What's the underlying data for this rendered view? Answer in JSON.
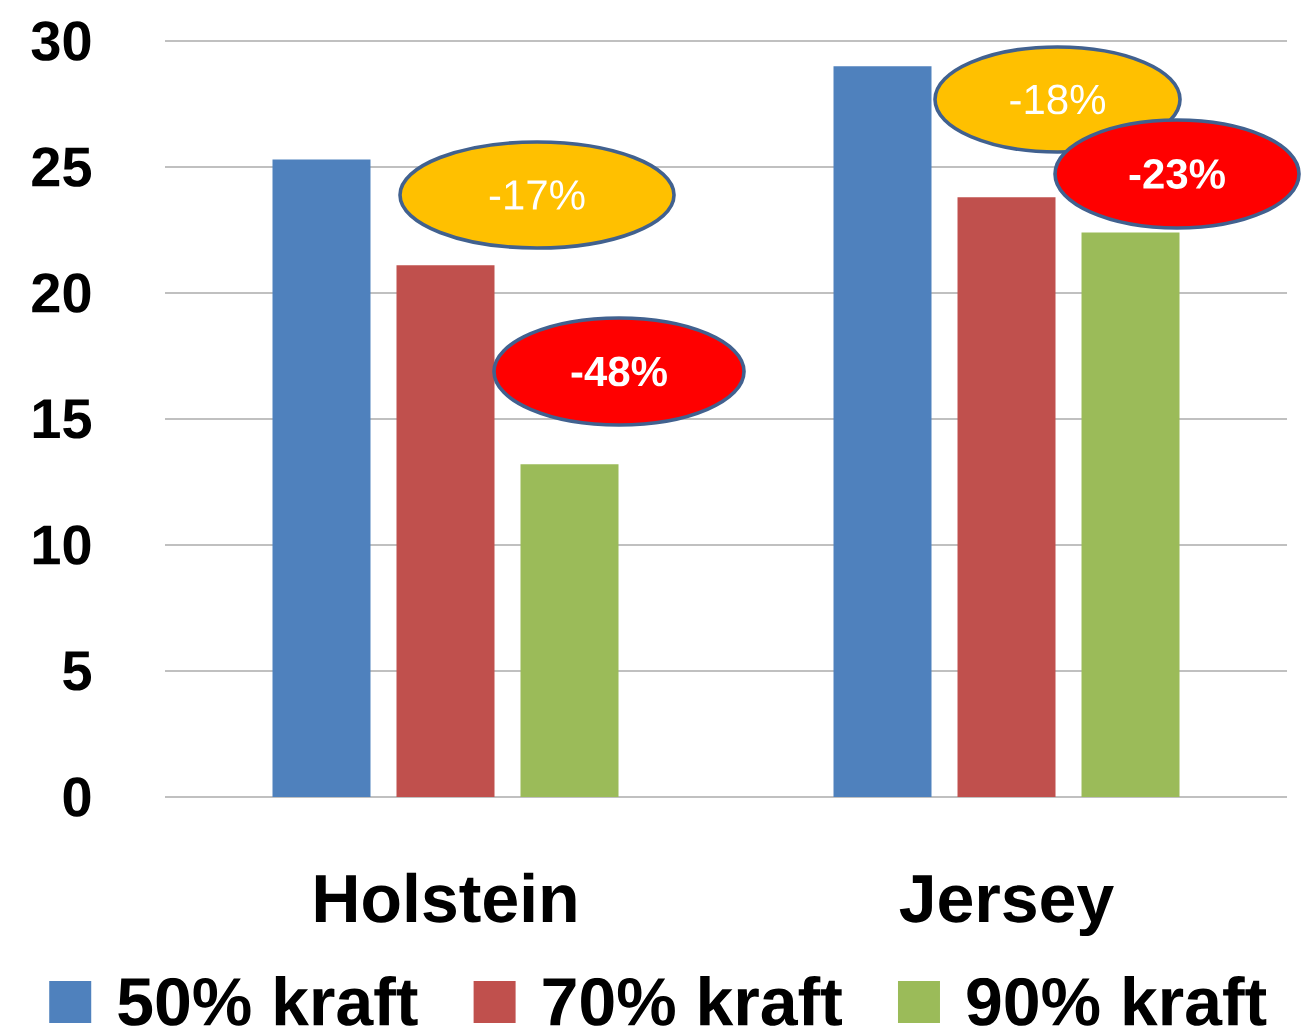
{
  "chart_data": {
    "type": "bar",
    "categories": [
      "Holstein",
      "Jersey"
    ],
    "series": [
      {
        "name": "50% kraft",
        "color": "#4f81bd",
        "values": [
          25.3,
          29.0
        ]
      },
      {
        "name": "70% kraft",
        "color": "#c0504d",
        "values": [
          21.1,
          23.8
        ]
      },
      {
        "name": "90% kraft",
        "color": "#9bbb59",
        "values": [
          13.2,
          22.4
        ]
      }
    ],
    "ylim": [
      0,
      30
    ],
    "yticks": [
      0,
      5,
      10,
      15,
      20,
      25,
      30
    ],
    "grid": "y",
    "legend": "bottom",
    "annotations": [
      "-17%",
      "-48%",
      "-18%",
      "-23%"
    ]
  }
}
